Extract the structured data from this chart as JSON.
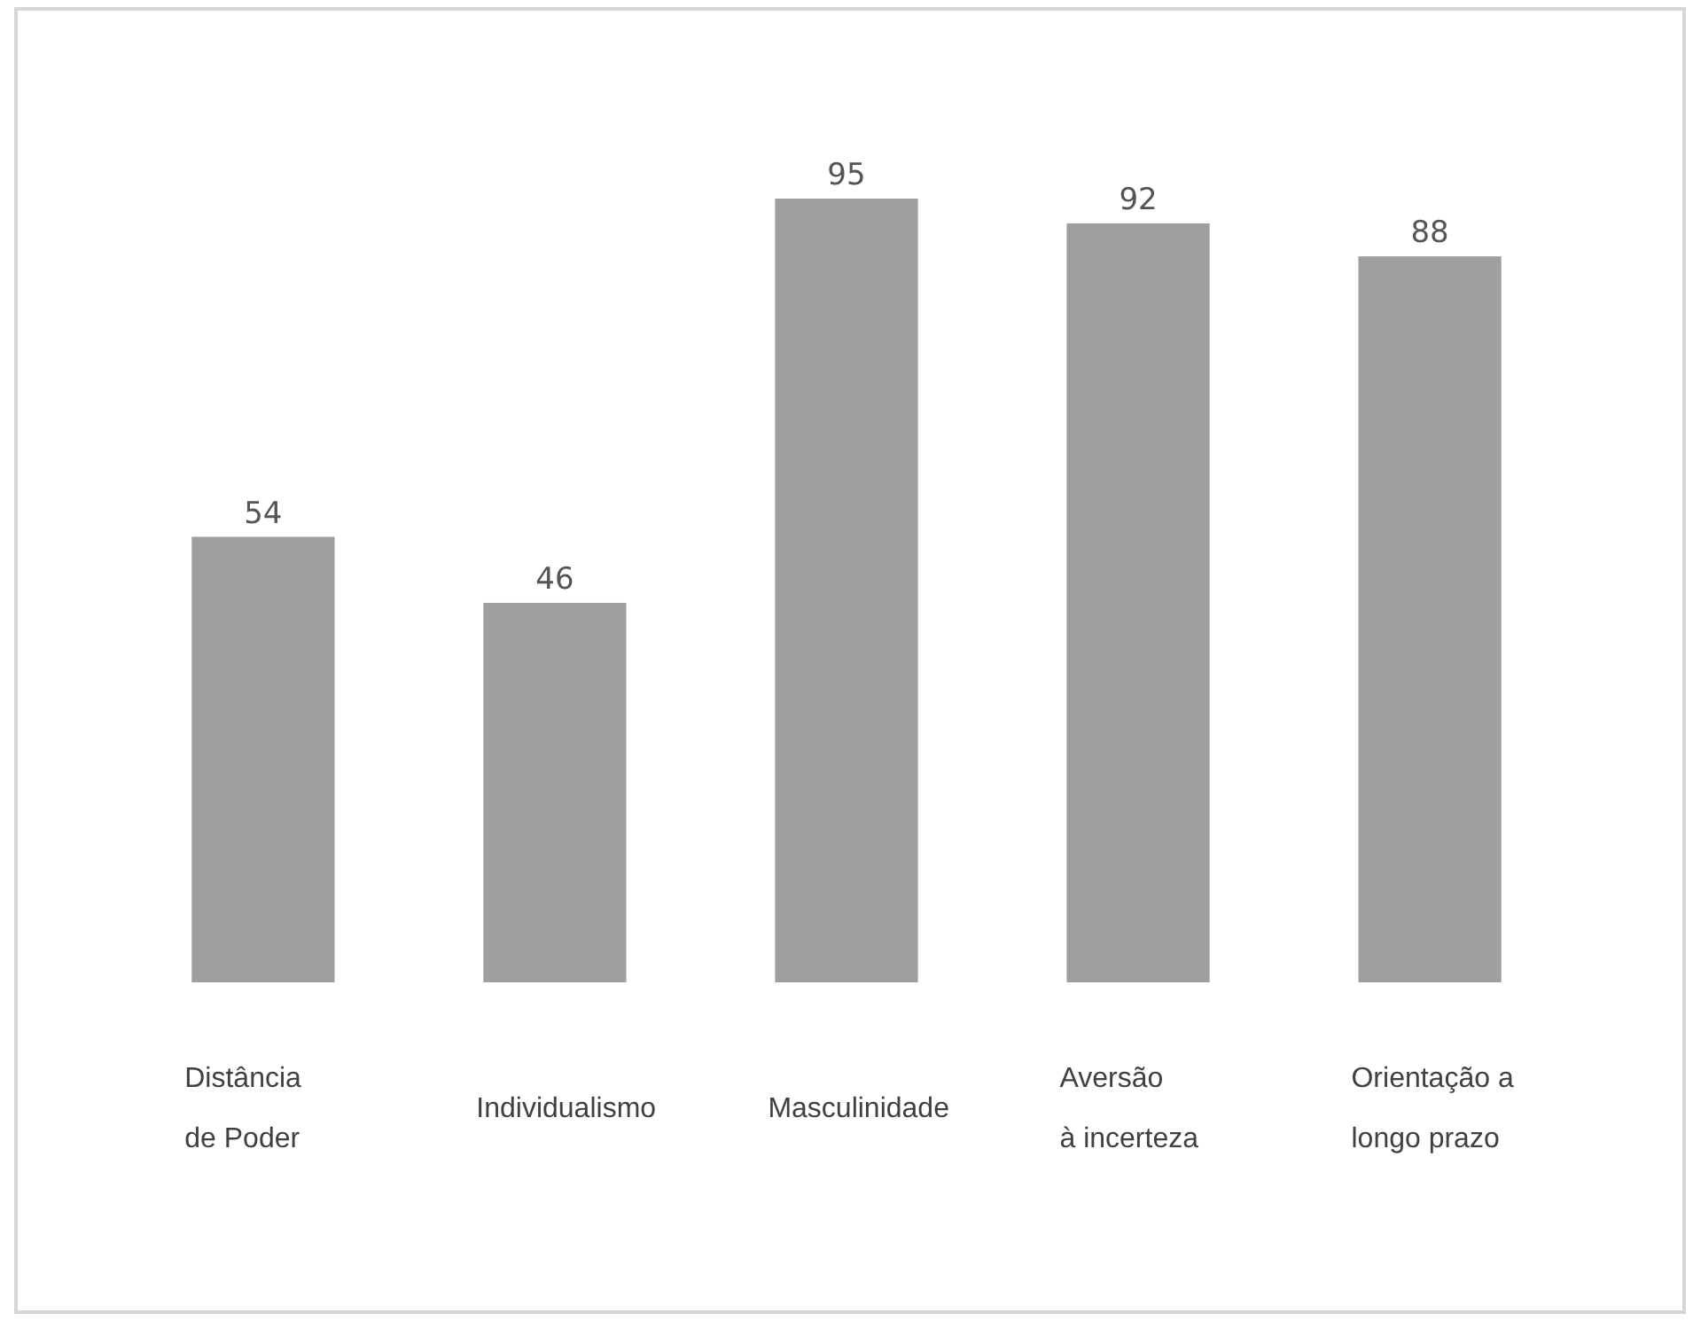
{
  "chart_data": {
    "type": "bar",
    "categories": [
      "Distância\nde Poder",
      "Individualismo",
      "Masculinidade",
      "Aversão\nà incerteza",
      "Orientação a\nlongo prazo"
    ],
    "values": [
      54,
      46,
      95,
      92,
      88
    ],
    "color": "#a09ea0",
    "data_labels": true
  }
}
